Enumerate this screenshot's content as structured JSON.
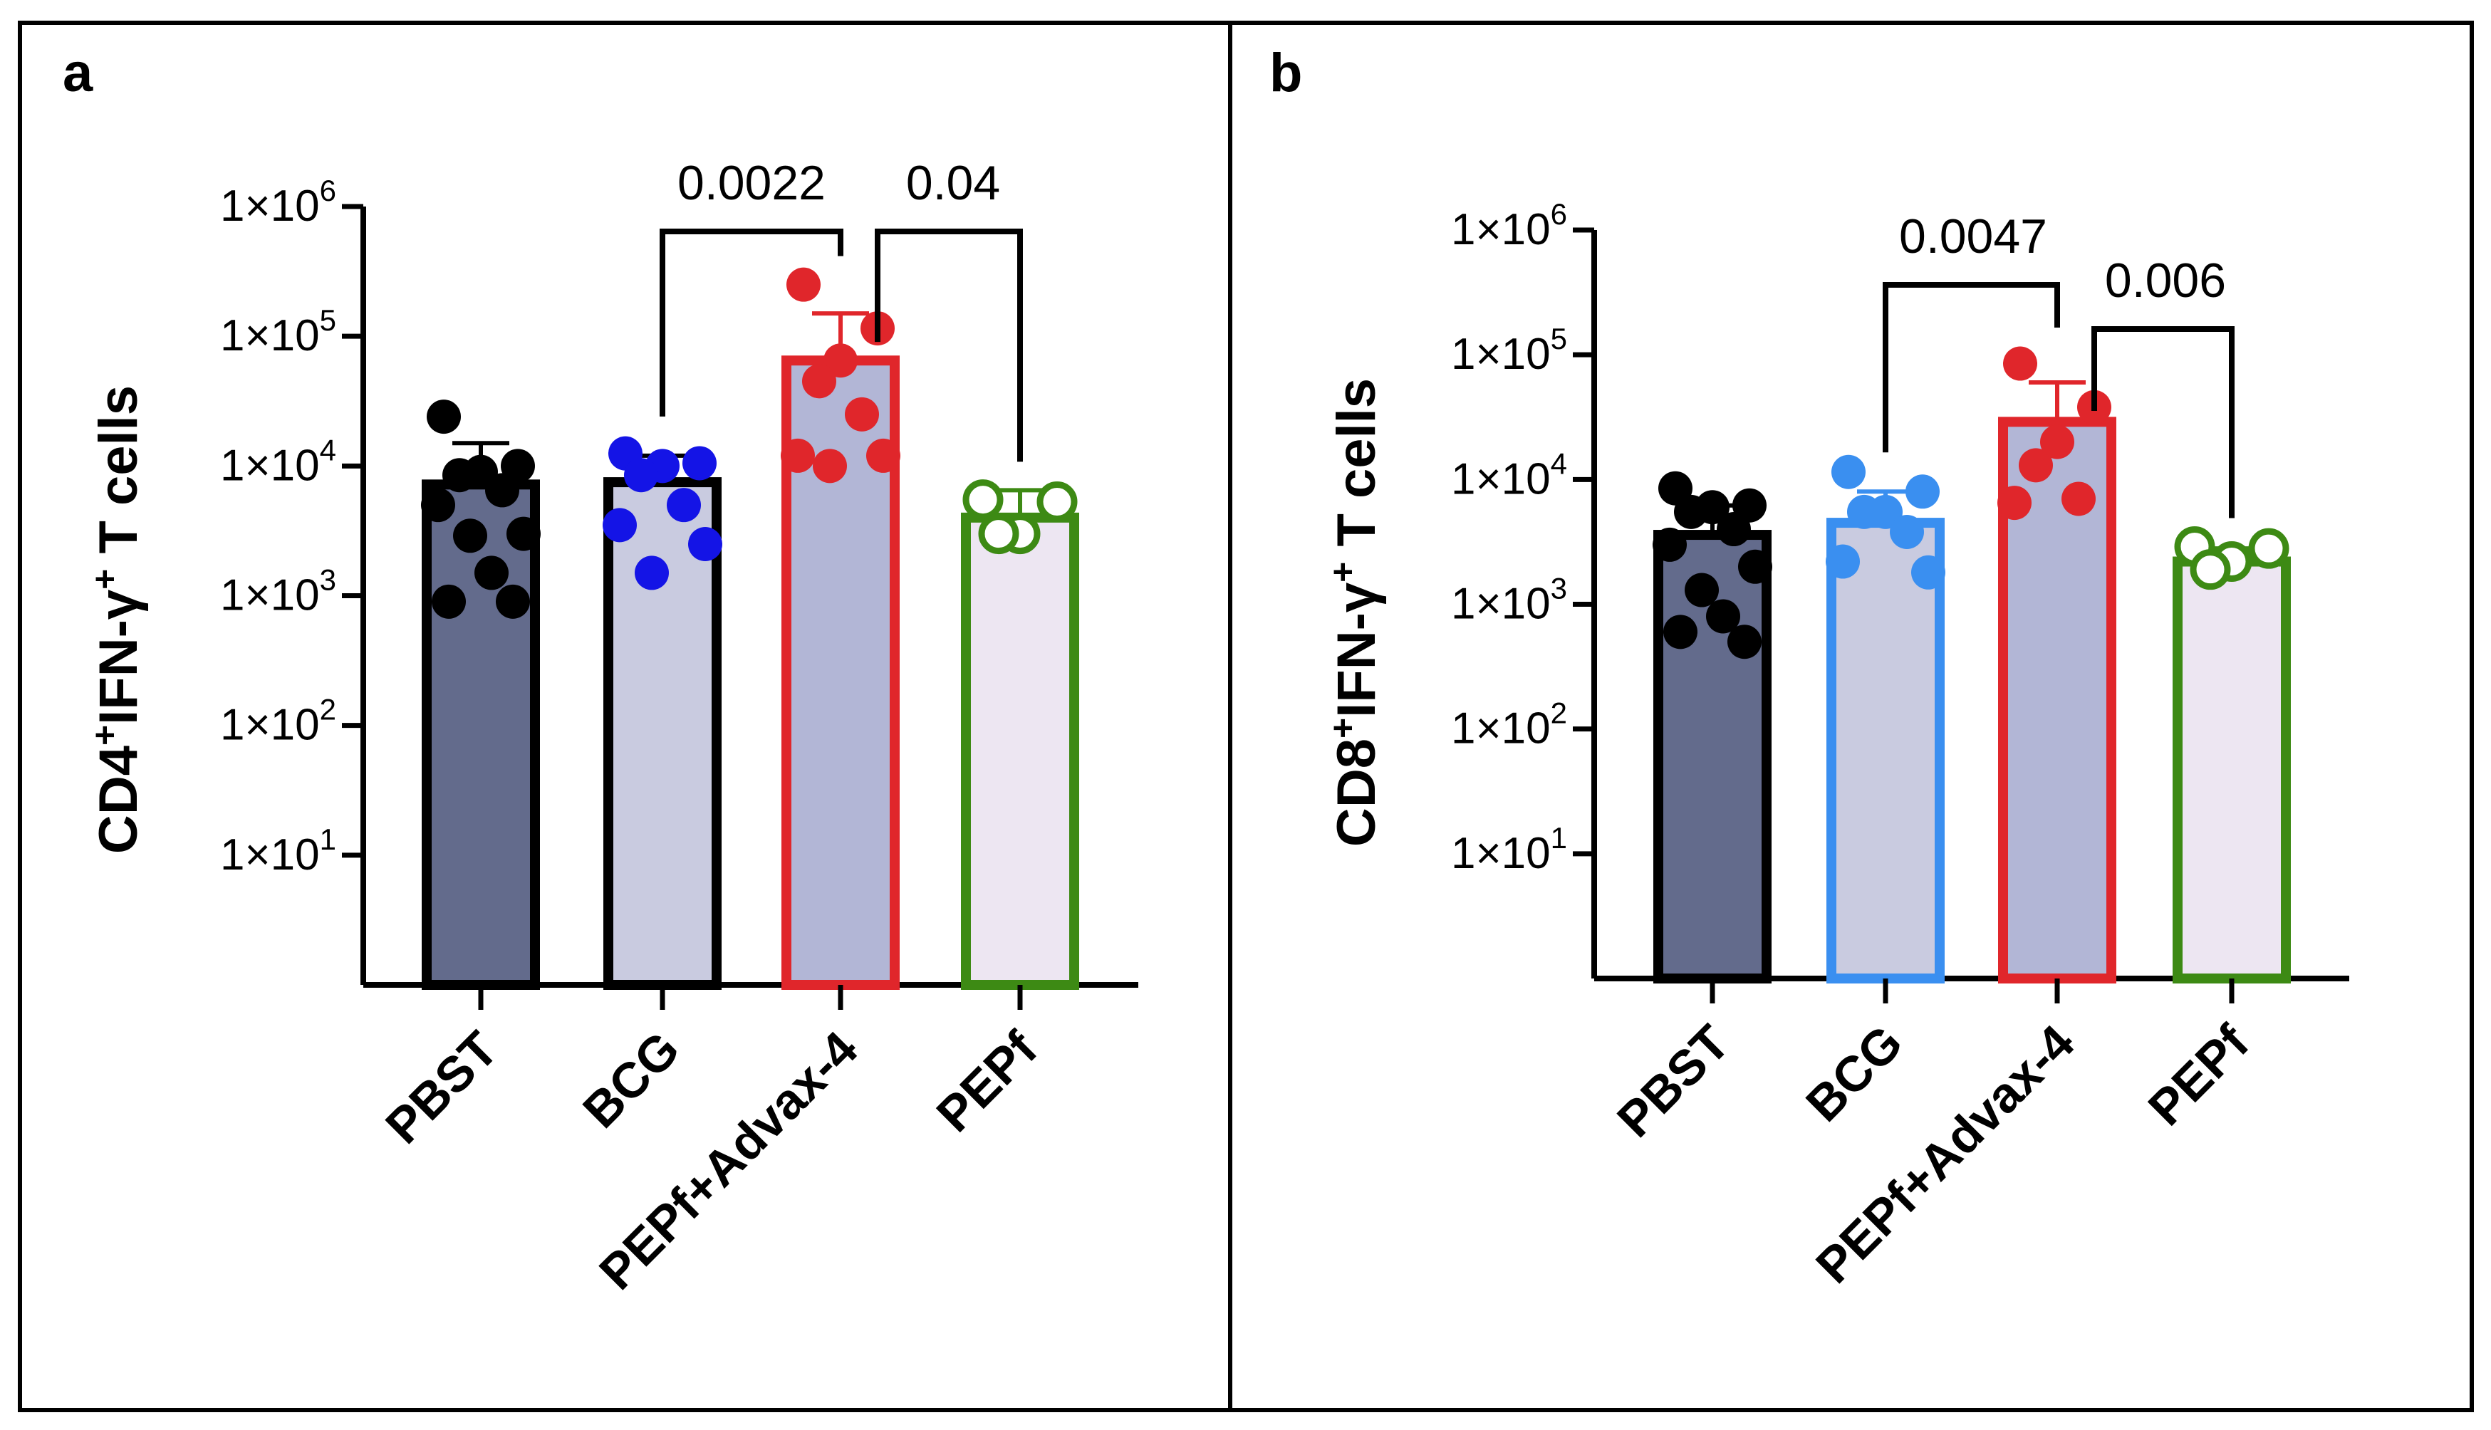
{
  "colors": {
    "black": "#000000",
    "blue_dark": "#1414e6",
    "blue_light": "#3a8ff0",
    "red": "#e0262b",
    "green": "#3d8a14",
    "fill_pbst": "#636b8c",
    "fill_bcg": "#c9cbe0",
    "fill_pepf_advax": "#b2b6d6",
    "fill_pepf": "#ede6f2"
  },
  "chart_data": [
    {
      "type": "bar",
      "panel_label": "a",
      "scale": "log10",
      "ylabel": {
        "main": "CD4",
        "sup1": "+",
        "mid": "IFN-γ",
        "sup2": "+",
        "end": " T cells"
      },
      "ylim_log10": [
        0,
        6
      ],
      "yticks": [
        {
          "base": "1×10",
          "exp": "1",
          "log": 1
        },
        {
          "base": "1×10",
          "exp": "2",
          "log": 2
        },
        {
          "base": "1×10",
          "exp": "3",
          "log": 3
        },
        {
          "base": "1×10",
          "exp": "4",
          "log": 4
        },
        {
          "base": "1×10",
          "exp": "5",
          "log": 5
        },
        {
          "base": "1×10",
          "exp": "6",
          "log": 6
        }
      ],
      "categories": [
        "PBST",
        "BCG",
        "PEPf+Advax-4",
        "PEPf"
      ],
      "bars": [
        {
          "label": "PBST",
          "mean": 7200,
          "sd_upper": 15000,
          "stroke": "#000000",
          "fill": "#636b8c",
          "point_color": "#000000",
          "hollow": false,
          "points": [
            24000,
            10000,
            9000,
            8500,
            6500,
            5000,
            3000,
            2900,
            1500,
            900,
            900
          ]
        },
        {
          "label": "BCG",
          "mean": 7500,
          "sd_upper": 12000,
          "stroke": "#000000",
          "fill": "#c9cbe0",
          "point_color": "#1414e6",
          "hollow": false,
          "points": [
            12500,
            10500,
            10000,
            8500,
            5000,
            3500,
            2500,
            1500
          ]
        },
        {
          "label": "PEPf+Advax-4",
          "mean": 65000,
          "sd_upper": 150000,
          "stroke": "#e0262b",
          "fill": "#b2b6d6",
          "point_color": "#e0262b",
          "hollow": false,
          "points": [
            250000,
            115000,
            65000,
            45000,
            25000,
            12000,
            12000,
            10000
          ]
        },
        {
          "label": "PEPf",
          "mean": 4000,
          "sd_upper": 6500,
          "stroke": "#3d8a14",
          "fill": "#ede6f2",
          "point_color": "#3d8a14",
          "hollow": true,
          "points": [
            5500,
            5300,
            3000,
            3000
          ]
        }
      ],
      "comparisons": [
        {
          "from": "BCG",
          "to": "PEPf+Advax-4",
          "label": "0.0022"
        },
        {
          "from": "PEPf+Advax-4",
          "to": "PEPf",
          "label": "0.04"
        }
      ]
    },
    {
      "type": "bar",
      "panel_label": "b",
      "scale": "log10",
      "ylabel": {
        "main": "CD8",
        "sup1": "+",
        "mid": "IFN-γ",
        "sup2": "+",
        "end": " T cells"
      },
      "ylim_log10": [
        0,
        6
      ],
      "yticks": [
        {
          "base": "1×10",
          "exp": "1",
          "log": 1
        },
        {
          "base": "1×10",
          "exp": "2",
          "log": 2
        },
        {
          "base": "1×10",
          "exp": "3",
          "log": 3
        },
        {
          "base": "1×10",
          "exp": "4",
          "log": 4
        },
        {
          "base": "1×10",
          "exp": "5",
          "log": 5
        },
        {
          "base": "1×10",
          "exp": "6",
          "log": 6
        }
      ],
      "categories": [
        "PBST",
        "BCG",
        "PEPf+Advax-4",
        "PEPf"
      ],
      "bars": [
        {
          "label": "PBST",
          "mean": 3600,
          "sd_upper": 6200,
          "stroke": "#000000",
          "fill": "#636b8c",
          "point_color": "#000000",
          "hollow": false,
          "points": [
            8500,
            6200,
            6000,
            5500,
            4000,
            3000,
            2000,
            1300,
            800,
            600,
            500
          ]
        },
        {
          "label": "BCG",
          "mean": 4500,
          "sd_upper": 8000,
          "stroke": "#3a8ff0",
          "fill": "#c9cbe0",
          "point_color": "#3a8ff0",
          "hollow": false,
          "points": [
            11500,
            8000,
            5500,
            5500,
            3800,
            2200,
            1800
          ]
        },
        {
          "label": "PEPf+Advax-4",
          "mean": 29000,
          "sd_upper": 60000,
          "stroke": "#e0262b",
          "fill": "#b2b6d6",
          "point_color": "#e0262b",
          "hollow": false,
          "points": [
            85000,
            38000,
            20000,
            13000,
            7000,
            6500
          ]
        },
        {
          "label": "PEPf",
          "mean": 2200,
          "sd_upper": 2800,
          "stroke": "#3d8a14",
          "fill": "#ede6f2",
          "point_color": "#3d8a14",
          "hollow": true,
          "points": [
            2900,
            2800,
            2200,
            1900
          ]
        }
      ],
      "comparisons": [
        {
          "from": "BCG",
          "to": "PEPf+Advax-4",
          "label": "0.0047"
        },
        {
          "from": "PEPf+Advax-4",
          "to": "PEPf",
          "label": "0.006"
        }
      ]
    }
  ]
}
